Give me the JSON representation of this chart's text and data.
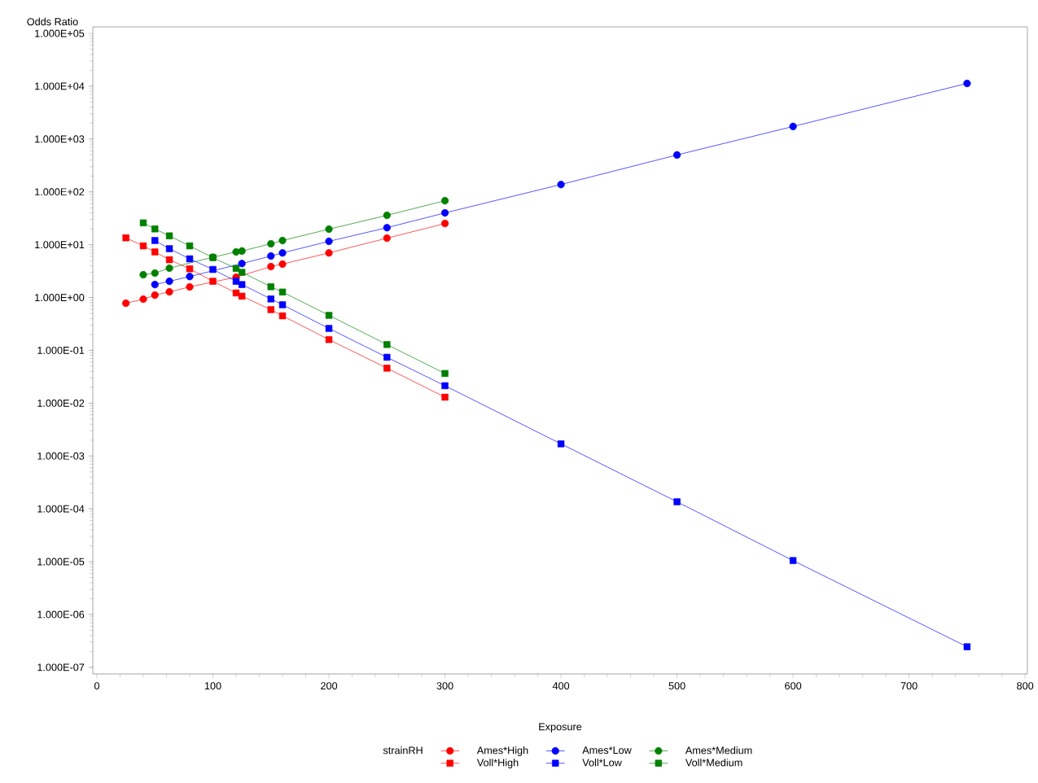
{
  "chart_data": {
    "type": "line",
    "xlabel": "Exposure",
    "ylabel": "Odds Ratio",
    "legend_title": "strainRH",
    "legend": "bottom",
    "log": "y",
    "grid": false,
    "line_style": "solid",
    "xlim": [
      -3.5,
      802
    ],
    "xticks": [
      0,
      100,
      200,
      300,
      400,
      500,
      600,
      700,
      800
    ],
    "ylim": [
      7.5e-08,
      133000.0
    ],
    "yticks": [
      {
        "value": 1e-07,
        "label": "1.000E-07"
      },
      {
        "value": 1e-06,
        "label": "1.000E-06"
      },
      {
        "value": 1e-05,
        "label": "1.000E-05"
      },
      {
        "value": 0.0001,
        "label": "1.000E-04"
      },
      {
        "value": 0.001,
        "label": "1.000E-03"
      },
      {
        "value": 0.01,
        "label": "1.000E-02"
      },
      {
        "value": 0.1,
        "label": "1.000E-01"
      },
      {
        "value": 1,
        "label": "1.000E+00"
      },
      {
        "value": 10,
        "label": "1.000E+01"
      },
      {
        "value": 100,
        "label": "1.000E+02"
      },
      {
        "value": 1000,
        "label": "1.000E+03"
      },
      {
        "value": 10000,
        "label": "1.000E+04"
      },
      {
        "value": 100000,
        "label": "1.000E+05"
      }
    ],
    "series": [
      {
        "name": "Ames*High",
        "color": "#ff0000",
        "marker": "circle",
        "x": [
          25,
          40,
          50,
          62.5,
          80,
          100,
          120,
          125,
          150,
          160,
          200,
          250,
          300
        ],
        "values": [
          0.78,
          0.93,
          1.11,
          1.28,
          1.59,
          null,
          2.43,
          null,
          3.85,
          4.3,
          7.0,
          13.3,
          25.2
        ]
      },
      {
        "name": "Ames*Low",
        "color": "#0000ff",
        "marker": "circle",
        "x": [
          50,
          62.5,
          80,
          100,
          120,
          125,
          150,
          160,
          200,
          250,
          300,
          400,
          500,
          600,
          750
        ],
        "values": [
          1.76,
          2.03,
          2.5,
          null,
          null,
          4.4,
          6.1,
          7.0,
          11.6,
          21,
          40,
          138,
          500,
          1730,
          11300
        ]
      },
      {
        "name": "Ames*Medium",
        "color": "#008000",
        "marker": "circle",
        "x": [
          40,
          50,
          62.5,
          80,
          100,
          120,
          125,
          150,
          160,
          200,
          250,
          300
        ],
        "values": [
          2.7,
          2.9,
          3.6,
          null,
          5.8,
          7.3,
          7.6,
          10.4,
          12,
          19.7,
          36,
          68
        ]
      },
      {
        "name": "Voll*High",
        "color": "#ff0000",
        "marker": "square",
        "x": [
          25,
          40,
          50,
          62.5,
          80,
          100,
          120,
          125,
          150,
          160,
          200,
          250,
          300
        ],
        "values": [
          13.5,
          9.5,
          7.3,
          5.2,
          3.5,
          2.03,
          1.22,
          1.06,
          0.59,
          0.45,
          0.16,
          0.046,
          0.013
        ]
      },
      {
        "name": "Voll*Low",
        "color": "#0000ff",
        "marker": "square",
        "x": [
          50,
          62.5,
          80,
          100,
          120,
          125,
          150,
          160,
          200,
          250,
          300,
          400,
          500,
          600,
          750
        ],
        "values": [
          12,
          8.4,
          5.4,
          3.4,
          2.03,
          1.76,
          0.94,
          0.73,
          0.26,
          0.074,
          0.0214,
          0.0017,
          0.000136,
          1.05e-05,
          2.45e-07
        ]
      },
      {
        "name": "Voll*Medium",
        "color": "#008000",
        "marker": "square",
        "x": [
          40,
          50,
          62.5,
          80,
          100,
          120,
          125,
          150,
          160,
          200,
          250,
          300
        ],
        "values": [
          25.9,
          19.9,
          14.7,
          9.5,
          5.7,
          3.55,
          3.0,
          1.6,
          1.27,
          0.46,
          0.129,
          0.0365
        ]
      }
    ]
  }
}
